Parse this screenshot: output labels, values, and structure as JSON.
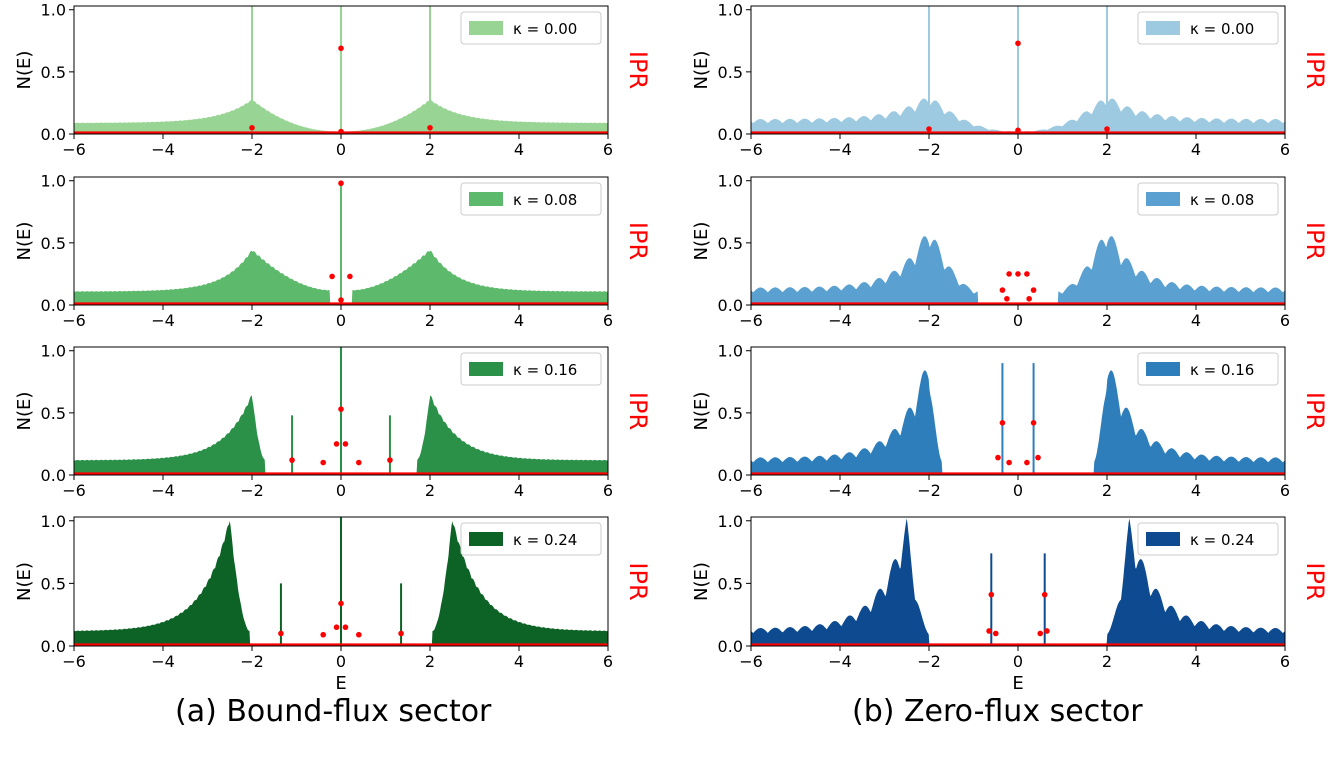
{
  "chart_data": [
    {
      "type": "area",
      "panel": "a",
      "row": 0,
      "ylabel": "N(E)",
      "y2label": "IPR",
      "xlabel": "",
      "legend": "κ = 0.00",
      "legend_placement": "top-right",
      "kappa": 0.0,
      "xlim": [
        -6,
        6
      ],
      "ylim": [
        0,
        1.03
      ],
      "xticks": [
        "−6",
        "−4",
        "−2",
        "0",
        "2",
        "4",
        "6"
      ],
      "yticks": [
        "0.0",
        "0.5",
        "1.0"
      ],
      "color": "#98d594",
      "ipr_color": "#ff0000",
      "dos_approx": {
        "gap": 0,
        "band_edge": 0,
        "peaks": [
          [
            -2,
            0.28
          ],
          [
            2,
            0.28
          ]
        ],
        "bulk_level": 0.09,
        "spikes": [
          [
            -2,
            1.03
          ],
          [
            0,
            1.03
          ],
          [
            2,
            1.03
          ]
        ]
      },
      "ipr_points": [
        [
          -2,
          0.05
        ],
        [
          0,
          0.69
        ],
        [
          2,
          0.05
        ],
        [
          0,
          0.02
        ]
      ]
    },
    {
      "type": "area",
      "panel": "a",
      "row": 1,
      "ylabel": "N(E)",
      "y2label": "IPR",
      "xlabel": "",
      "legend": "κ = 0.08",
      "legend_placement": "top-right",
      "kappa": 0.08,
      "xlim": [
        -6,
        6
      ],
      "ylim": [
        0,
        1.03
      ],
      "xticks": [
        "−6",
        "−4",
        "−2",
        "0",
        "2",
        "4",
        "6"
      ],
      "yticks": [
        "0.0",
        "0.5",
        "1.0"
      ],
      "color": "#5db96b",
      "ipr_color": "#ff0000",
      "dos_approx": {
        "gap": 0.25,
        "band_edge": 0.25,
        "peaks": [
          [
            -2,
            0.45
          ],
          [
            2,
            0.45
          ]
        ],
        "bulk_level": 0.11,
        "spikes": [
          [
            0,
            1.0
          ]
        ]
      },
      "ipr_points": [
        [
          0,
          0.98
        ],
        [
          -0.2,
          0.23
        ],
        [
          0.2,
          0.23
        ],
        [
          0,
          0.04
        ]
      ]
    },
    {
      "type": "area",
      "panel": "a",
      "row": 2,
      "ylabel": "N(E)",
      "y2label": "IPR",
      "xlabel": "",
      "legend": "κ = 0.16",
      "legend_placement": "top-right",
      "kappa": 0.16,
      "xlim": [
        -6,
        6
      ],
      "ylim": [
        0,
        1.03
      ],
      "xticks": [
        "−6",
        "−4",
        "−2",
        "0",
        "2",
        "4",
        "6"
      ],
      "yticks": [
        "0.0",
        "0.5",
        "1.0"
      ],
      "color": "#2b9149",
      "ipr_color": "#ff0000",
      "dos_approx": {
        "gap": 1.7,
        "band_edge": 1.7,
        "peaks": [
          [
            -2,
            0.66
          ],
          [
            2,
            0.66
          ]
        ],
        "bulk_level": 0.12,
        "spikes": [
          [
            0,
            1.03
          ],
          [
            -1.1,
            0.48
          ],
          [
            1.1,
            0.48
          ]
        ]
      },
      "ipr_points": [
        [
          0,
          0.53
        ],
        [
          -0.1,
          0.25
        ],
        [
          0.1,
          0.25
        ],
        [
          -1.1,
          0.12
        ],
        [
          1.1,
          0.12
        ],
        [
          -0.4,
          0.1
        ],
        [
          0.4,
          0.1
        ]
      ]
    },
    {
      "type": "area",
      "panel": "a",
      "row": 3,
      "ylabel": "N(E)",
      "y2label": "IPR",
      "xlabel": "E",
      "legend": "κ = 0.24",
      "legend_placement": "top-right",
      "kappa": 0.24,
      "xlim": [
        -6,
        6
      ],
      "ylim": [
        0,
        1.03
      ],
      "xticks": [
        "−6",
        "−4",
        "−2",
        "0",
        "2",
        "4",
        "6"
      ],
      "yticks": [
        "0.0",
        "0.5",
        "1.0"
      ],
      "color": "#0d6326",
      "ipr_color": "#ff0000",
      "dos_approx": {
        "gap": 2.05,
        "band_edge": 2.05,
        "peaks": [
          [
            -2.5,
            1.03
          ],
          [
            2.5,
            1.03
          ]
        ],
        "bulk_level": 0.12,
        "spikes": [
          [
            0,
            1.03
          ],
          [
            -1.35,
            0.5
          ],
          [
            1.35,
            0.5
          ]
        ]
      },
      "ipr_points": [
        [
          0,
          0.34
        ],
        [
          -1.35,
          0.1
        ],
        [
          1.35,
          0.1
        ],
        [
          -0.4,
          0.09
        ],
        [
          0.4,
          0.09
        ],
        [
          -0.1,
          0.15
        ],
        [
          0.1,
          0.15
        ]
      ]
    },
    {
      "type": "area",
      "panel": "b",
      "row": 0,
      "ylabel": "N(E)",
      "y2label": "IPR",
      "xlabel": "",
      "legend": "κ = 0.00",
      "legend_placement": "top-right",
      "kappa": 0.0,
      "xlim": [
        -6,
        6
      ],
      "ylim": [
        0,
        1.03
      ],
      "xticks": [
        "−6",
        "−4",
        "−2",
        "0",
        "2",
        "4",
        "6"
      ],
      "yticks": [
        "0.0",
        "0.5",
        "1.0"
      ],
      "color": "#9ecae1",
      "ipr_color": "#ff0000",
      "dos_approx": {
        "gap": 0,
        "band_edge": 0,
        "peaks": [
          [
            -2,
            0.32
          ],
          [
            2,
            0.32
          ]
        ],
        "bulk_level": 0.12,
        "spikes": [
          [
            -2,
            1.03
          ],
          [
            0,
            1.03
          ],
          [
            2,
            1.03
          ]
        ]
      },
      "ipr_points": [
        [
          0,
          0.73
        ],
        [
          -2,
          0.04
        ],
        [
          2,
          0.04
        ],
        [
          0,
          0.03
        ]
      ]
    },
    {
      "type": "area",
      "panel": "b",
      "row": 1,
      "ylabel": "N(E)",
      "y2label": "IPR",
      "xlabel": "",
      "legend": "κ = 0.08",
      "legend_placement": "top-right",
      "kappa": 0.08,
      "xlim": [
        -6,
        6
      ],
      "ylim": [
        0,
        1.03
      ],
      "xticks": [
        "−6",
        "−4",
        "−2",
        "0",
        "2",
        "4",
        "6"
      ],
      "yticks": [
        "0.0",
        "0.5",
        "1.0"
      ],
      "color": "#5aa0d0",
      "ipr_color": "#ff0000",
      "dos_approx": {
        "gap": 0.9,
        "band_edge": 0.9,
        "peaks": [
          [
            -2,
            0.65
          ],
          [
            2,
            0.65
          ]
        ],
        "bulk_level": 0.14,
        "spikes": []
      },
      "ipr_points": [
        [
          -0.2,
          0.25
        ],
        [
          0,
          0.25
        ],
        [
          0.2,
          0.25
        ],
        [
          -0.35,
          0.12
        ],
        [
          0.35,
          0.12
        ],
        [
          -0.25,
          0.05
        ],
        [
          0.25,
          0.05
        ]
      ]
    },
    {
      "type": "area",
      "panel": "b",
      "row": 2,
      "ylabel": "N(E)",
      "y2label": "IPR",
      "xlabel": "",
      "legend": "κ = 0.16",
      "legend_placement": "top-right",
      "kappa": 0.16,
      "xlim": [
        -6,
        6
      ],
      "ylim": [
        0,
        1.03
      ],
      "xticks": [
        "−6",
        "−4",
        "−2",
        "0",
        "2",
        "4",
        "6"
      ],
      "yticks": [
        "0.0",
        "0.5",
        "1.0"
      ],
      "color": "#2f7ebc",
      "ipr_color": "#ff0000",
      "dos_approx": {
        "gap": 1.7,
        "band_edge": 1.7,
        "peaks": [
          [
            -2,
            1.0
          ],
          [
            2,
            1.0
          ]
        ],
        "bulk_level": 0.14,
        "spikes": [
          [
            -0.35,
            0.9
          ],
          [
            0.35,
            0.9
          ]
        ]
      },
      "ipr_points": [
        [
          -0.35,
          0.42
        ],
        [
          0.35,
          0.42
        ],
        [
          -0.45,
          0.14
        ],
        [
          0.45,
          0.14
        ],
        [
          -0.2,
          0.1
        ],
        [
          0.2,
          0.1
        ]
      ]
    },
    {
      "type": "area",
      "panel": "b",
      "row": 3,
      "ylabel": "N(E)",
      "y2label": "IPR",
      "xlabel": "E",
      "legend": "κ = 0.24",
      "legend_placement": "top-right",
      "kappa": 0.24,
      "xlim": [
        -6,
        6
      ],
      "ylim": [
        0,
        1.03
      ],
      "xticks": [
        "−6",
        "−4",
        "−2",
        "0",
        "2",
        "4",
        "6"
      ],
      "yticks": [
        "0.0",
        "0.5",
        "1.0"
      ],
      "color": "#0d4a8f",
      "ipr_color": "#ff0000",
      "dos_approx": {
        "gap": 2.0,
        "band_edge": 2.0,
        "peaks": [
          [
            -2.5,
            1.03
          ],
          [
            2.5,
            1.03
          ]
        ],
        "bulk_level": 0.14,
        "spikes": [
          [
            -0.6,
            0.74
          ],
          [
            0.6,
            0.74
          ]
        ]
      },
      "ipr_points": [
        [
          -0.6,
          0.41
        ],
        [
          0.6,
          0.41
        ],
        [
          -0.65,
          0.12
        ],
        [
          0.65,
          0.12
        ],
        [
          -0.5,
          0.1
        ],
        [
          0.5,
          0.1
        ]
      ]
    }
  ],
  "captions": {
    "a": "(a) Bound-flux sector",
    "b": "(b) Zero-flux sector"
  }
}
